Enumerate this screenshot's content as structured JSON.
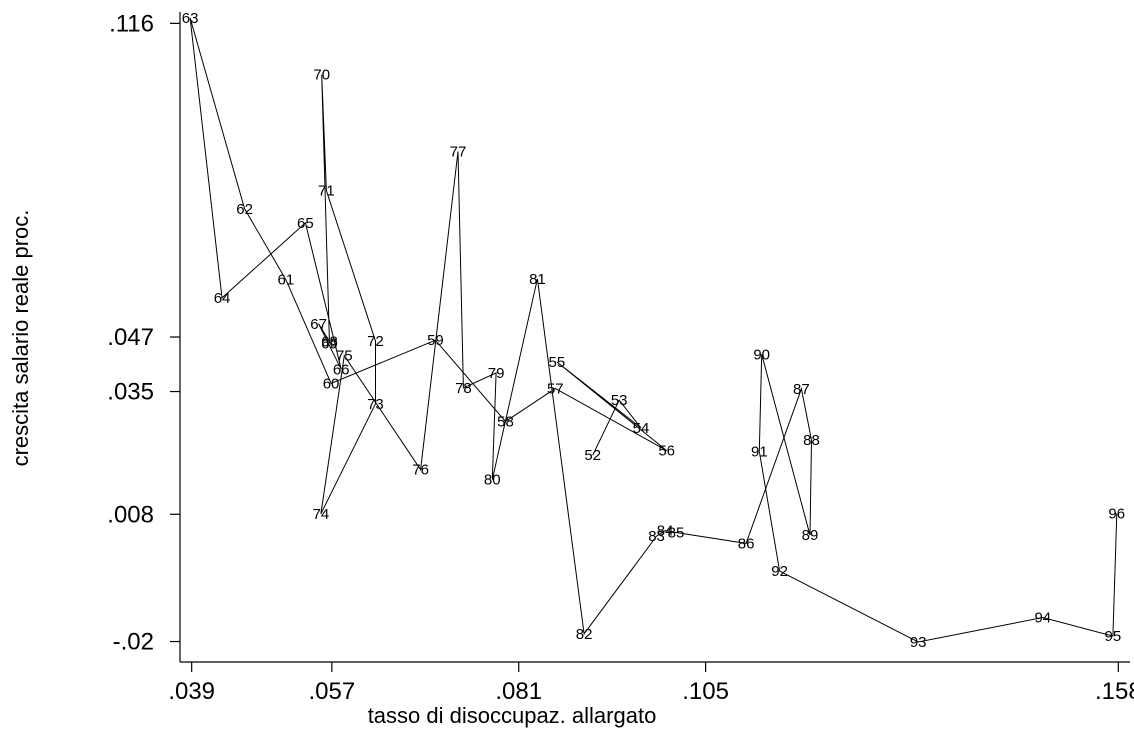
{
  "chart_data": {
    "type": "line",
    "title": "",
    "xlabel": "tasso di disoccupaz. allargato",
    "ylabel": "crescita salario reale proc.",
    "xlim": [
      0.0375,
      0.1595
    ],
    "ylim": [
      -0.0245,
      0.1185
    ],
    "x_ticks": [
      0.039,
      0.057,
      0.081,
      0.105,
      0.158
    ],
    "x_tick_labels": [
      ".039",
      ".057",
      ".081",
      ".105",
      ".158"
    ],
    "y_ticks": [
      -0.02,
      0.008,
      0.035,
      0.047,
      0.116
    ],
    "y_tick_labels": [
      "-.02",
      ".008",
      ".035",
      ".047",
      ".116"
    ],
    "grid": false,
    "legend": "none",
    "series": [
      {
        "points": [
          {
            "year": "52",
            "x": 0.0905,
            "y": 0.021
          },
          {
            "year": "53",
            "x": 0.0939,
            "y": 0.0331
          },
          {
            "year": "54",
            "x": 0.0967,
            "y": 0.027
          },
          {
            "year": "55",
            "x": 0.0859,
            "y": 0.0415
          },
          {
            "year": "56",
            "x": 0.1,
            "y": 0.022
          },
          {
            "year": "57",
            "x": 0.0857,
            "y": 0.0357
          },
          {
            "year": "58",
            "x": 0.0793,
            "y": 0.0284
          },
          {
            "year": "59",
            "x": 0.0703,
            "y": 0.0463
          },
          {
            "year": "60",
            "x": 0.0569,
            "y": 0.0368
          },
          {
            "year": "61",
            "x": 0.0511,
            "y": 0.0596
          },
          {
            "year": "62",
            "x": 0.0458,
            "y": 0.0752
          },
          {
            "year": "63",
            "x": 0.0388,
            "y": 0.1172
          },
          {
            "year": "64",
            "x": 0.0429,
            "y": 0.0556
          },
          {
            "year": "65",
            "x": 0.0536,
            "y": 0.0721
          },
          {
            "year": "66",
            "x": 0.0582,
            "y": 0.0399
          },
          {
            "year": "67",
            "x": 0.0553,
            "y": 0.0499
          },
          {
            "year": "68",
            "x": 0.0567,
            "y": 0.046
          },
          {
            "year": "69",
            "x": 0.0567,
            "y": 0.0456
          },
          {
            "year": "70",
            "x": 0.0557,
            "y": 0.1047
          },
          {
            "year": "71",
            "x": 0.0563,
            "y": 0.0792
          },
          {
            "year": "72",
            "x": 0.0626,
            "y": 0.0461
          },
          {
            "year": "73",
            "x": 0.0626,
            "y": 0.0323
          },
          {
            "year": "74",
            "x": 0.0556,
            "y": 0.0081
          },
          {
            "year": "75",
            "x": 0.0586,
            "y": 0.0429
          },
          {
            "year": "76",
            "x": 0.0684,
            "y": 0.0178
          },
          {
            "year": "77",
            "x": 0.0732,
            "y": 0.0878
          },
          {
            "year": "78",
            "x": 0.0739,
            "y": 0.0358
          },
          {
            "year": "79",
            "x": 0.0781,
            "y": 0.0391
          },
          {
            "year": "80",
            "x": 0.0776,
            "y": 0.0156
          },
          {
            "year": "81",
            "x": 0.0834,
            "y": 0.0598
          },
          {
            "year": "82",
            "x": 0.0894,
            "y": -0.0183
          },
          {
            "year": "83",
            "x": 0.0987,
            "y": 0.0032
          },
          {
            "year": "84",
            "x": 0.0998,
            "y": 0.0044
          },
          {
            "year": "85",
            "x": 0.1012,
            "y": 0.004
          },
          {
            "year": "86",
            "x": 0.1102,
            "y": 0.0016
          },
          {
            "year": "87",
            "x": 0.1173,
            "y": 0.0356
          },
          {
            "year": "88",
            "x": 0.1186,
            "y": 0.0243
          },
          {
            "year": "89",
            "x": 0.1184,
            "y": 0.0034
          },
          {
            "year": "90",
            "x": 0.1122,
            "y": 0.0432
          },
          {
            "year": "91",
            "x": 0.1119,
            "y": 0.0218
          },
          {
            "year": "92",
            "x": 0.1145,
            "y": -0.0045
          },
          {
            "year": "93",
            "x": 0.1323,
            "y": -0.0201
          },
          {
            "year": "94",
            "x": 0.1483,
            "y": -0.0147
          },
          {
            "year": "95",
            "x": 0.1573,
            "y": -0.0188
          },
          {
            "year": "96",
            "x": 0.1578,
            "y": 0.0082
          }
        ]
      }
    ]
  }
}
